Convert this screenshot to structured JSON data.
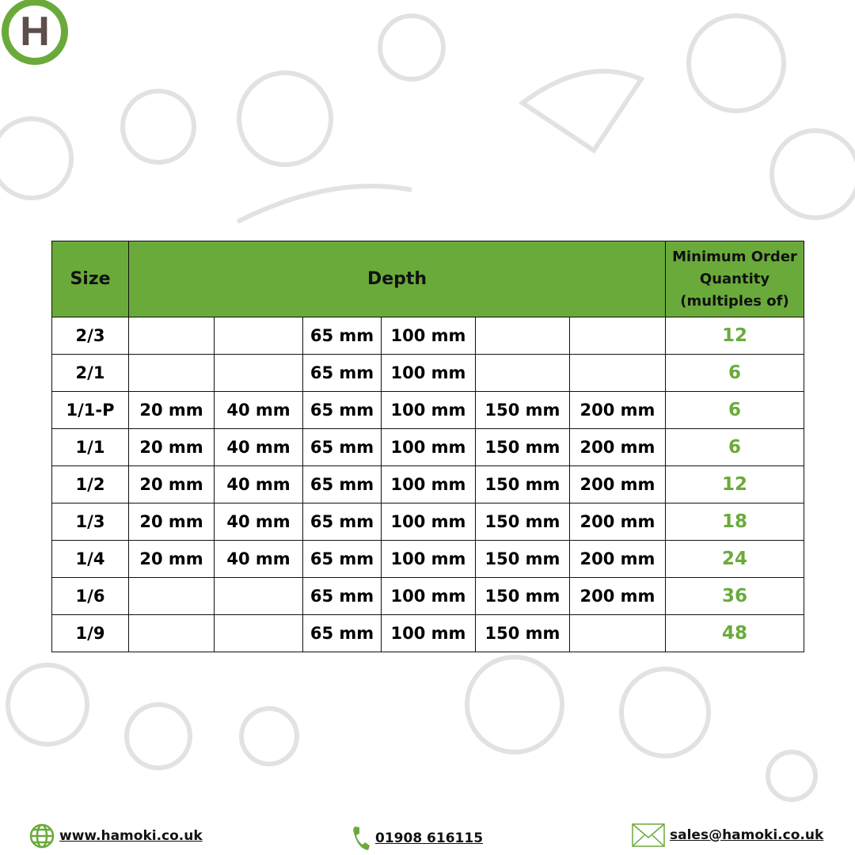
{
  "brand": {
    "logo_letter": "H",
    "accent": "#6aaa3a"
  },
  "table": {
    "headers": {
      "size": "Size",
      "depth": "Depth",
      "moq": "Minimum Order Quantity (multiples of)"
    },
    "rows": [
      {
        "size": "2/3",
        "depths": [
          "",
          "",
          "65 mm",
          "100 mm",
          "",
          ""
        ],
        "moq": "12"
      },
      {
        "size": "2/1",
        "depths": [
          "",
          "",
          "65 mm",
          "100 mm",
          "",
          ""
        ],
        "moq": "6"
      },
      {
        "size": "1/1-P",
        "depths": [
          "20 mm",
          "40 mm",
          "65 mm",
          "100 mm",
          "150 mm",
          "200 mm"
        ],
        "moq": "6"
      },
      {
        "size": "1/1",
        "depths": [
          "20 mm",
          "40 mm",
          "65 mm",
          "100 mm",
          "150 mm",
          "200 mm"
        ],
        "moq": "6"
      },
      {
        "size": "1/2",
        "depths": [
          "20 mm",
          "40 mm",
          "65 mm",
          "100 mm",
          "150 mm",
          "200 mm"
        ],
        "moq": "12"
      },
      {
        "size": "1/3",
        "depths": [
          "20 mm",
          "40 mm",
          "65 mm",
          "100 mm",
          "150 mm",
          "200 mm"
        ],
        "moq": "18"
      },
      {
        "size": "1/4",
        "depths": [
          "20 mm",
          "40 mm",
          "65 mm",
          "100 mm",
          "150 mm",
          "200 mm"
        ],
        "moq": "24"
      },
      {
        "size": "1/6",
        "depths": [
          "",
          "",
          "65 mm",
          "100 mm",
          "150 mm",
          "200 mm"
        ],
        "moq": "36"
      },
      {
        "size": "1/9",
        "depths": [
          "",
          "",
          "65 mm",
          "100 mm",
          "150 mm",
          ""
        ],
        "moq": "48"
      }
    ]
  },
  "footer": {
    "website": "www.hamoki.co.uk",
    "phone": "01908 616115",
    "email": "sales@hamoki.co.uk"
  }
}
